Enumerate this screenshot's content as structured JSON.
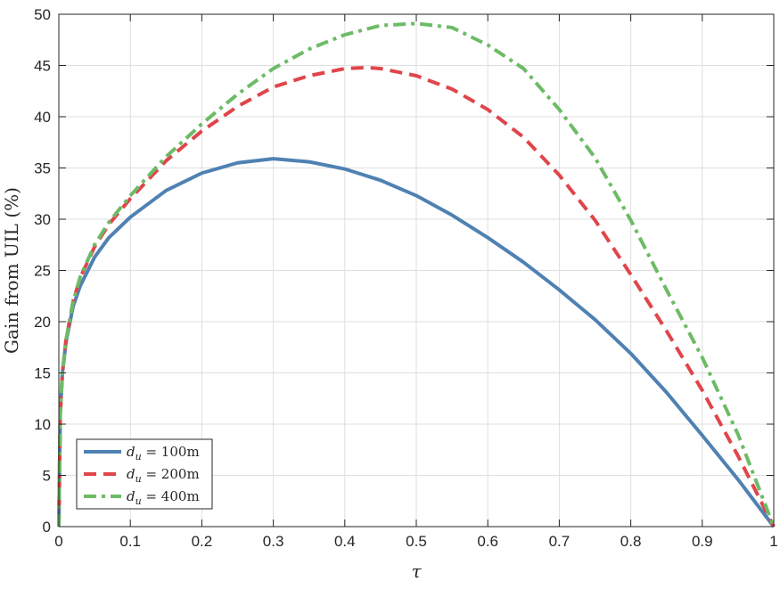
{
  "chart_data": {
    "type": "line",
    "title": "",
    "xlabel": "τ",
    "ylabel": "Gain from UIL (%)",
    "xlim": [
      0,
      1
    ],
    "ylim": [
      0,
      50
    ],
    "xticks": [
      0,
      0.1,
      0.2,
      0.3,
      0.4,
      0.5,
      0.6,
      0.7,
      0.8,
      0.9,
      1
    ],
    "xtick_labels": [
      "0",
      "0.1",
      "0.2",
      "0.3",
      "0.4",
      "0.5",
      "0.6",
      "0.7",
      "0.8",
      "0.9",
      "1"
    ],
    "yticks": [
      0,
      5,
      10,
      15,
      20,
      25,
      30,
      35,
      40,
      45,
      50
    ],
    "ytick_labels": [
      "0",
      "5",
      "10",
      "15",
      "20",
      "25",
      "30",
      "35",
      "40",
      "45",
      "50"
    ],
    "grid": true,
    "legend_position": "bottom-left",
    "series": [
      {
        "name": "d_u = 100m",
        "legend": {
          "symbol": "d",
          "subscript": "u",
          "text": " = 100m"
        },
        "color": "#4f81b3",
        "style": "solid",
        "x": [
          0,
          0.002,
          0.005,
          0.01,
          0.02,
          0.03,
          0.05,
          0.07,
          0.1,
          0.15,
          0.2,
          0.25,
          0.3,
          0.35,
          0.4,
          0.45,
          0.5,
          0.55,
          0.6,
          0.65,
          0.7,
          0.75,
          0.8,
          0.85,
          0.9,
          0.95,
          1
        ],
        "y": [
          0,
          11,
          15,
          18,
          21.5,
          23.5,
          26.3,
          28.2,
          30.2,
          32.8,
          34.5,
          35.5,
          35.9,
          35.6,
          34.9,
          33.8,
          32.3,
          30.4,
          28.2,
          25.8,
          23.1,
          20.2,
          16.9,
          13.1,
          8.9,
          4.6,
          0
        ]
      },
      {
        "name": "d_u = 200m",
        "legend": {
          "symbol": "d",
          "subscript": "u",
          "text": " = 200m"
        },
        "color": "#e0454a",
        "style": "dashed",
        "x": [
          0,
          0.002,
          0.005,
          0.01,
          0.02,
          0.03,
          0.05,
          0.07,
          0.1,
          0.15,
          0.2,
          0.25,
          0.3,
          0.35,
          0.4,
          0.43,
          0.45,
          0.5,
          0.55,
          0.6,
          0.65,
          0.7,
          0.75,
          0.8,
          0.85,
          0.9,
          0.95,
          1
        ],
        "y": [
          0,
          11,
          15,
          18.2,
          22,
          24.3,
          27.3,
          29.5,
          32,
          35.7,
          38.6,
          41,
          42.9,
          44,
          44.7,
          44.8,
          44.7,
          44,
          42.7,
          40.7,
          38,
          34.3,
          29.9,
          24.6,
          19.1,
          13.3,
          6.9,
          0
        ]
      },
      {
        "name": "d_u = 400m",
        "legend": {
          "symbol": "d",
          "subscript": "u",
          "text": " = 400m"
        },
        "color": "#6dbb66",
        "style": "dashdot",
        "x": [
          0,
          0.002,
          0.005,
          0.01,
          0.02,
          0.03,
          0.05,
          0.07,
          0.1,
          0.15,
          0.2,
          0.25,
          0.3,
          0.35,
          0.4,
          0.45,
          0.5,
          0.55,
          0.6,
          0.65,
          0.7,
          0.75,
          0.8,
          0.85,
          0.9,
          0.95,
          1
        ],
        "y": [
          0,
          11,
          15,
          18.2,
          22,
          24.4,
          27.5,
          29.7,
          32.3,
          36.1,
          39.3,
          42.2,
          44.7,
          46.6,
          48,
          48.9,
          49.1,
          48.7,
          47,
          44.7,
          40.7,
          36,
          29.9,
          23.1,
          16.5,
          9,
          0
        ]
      }
    ]
  }
}
